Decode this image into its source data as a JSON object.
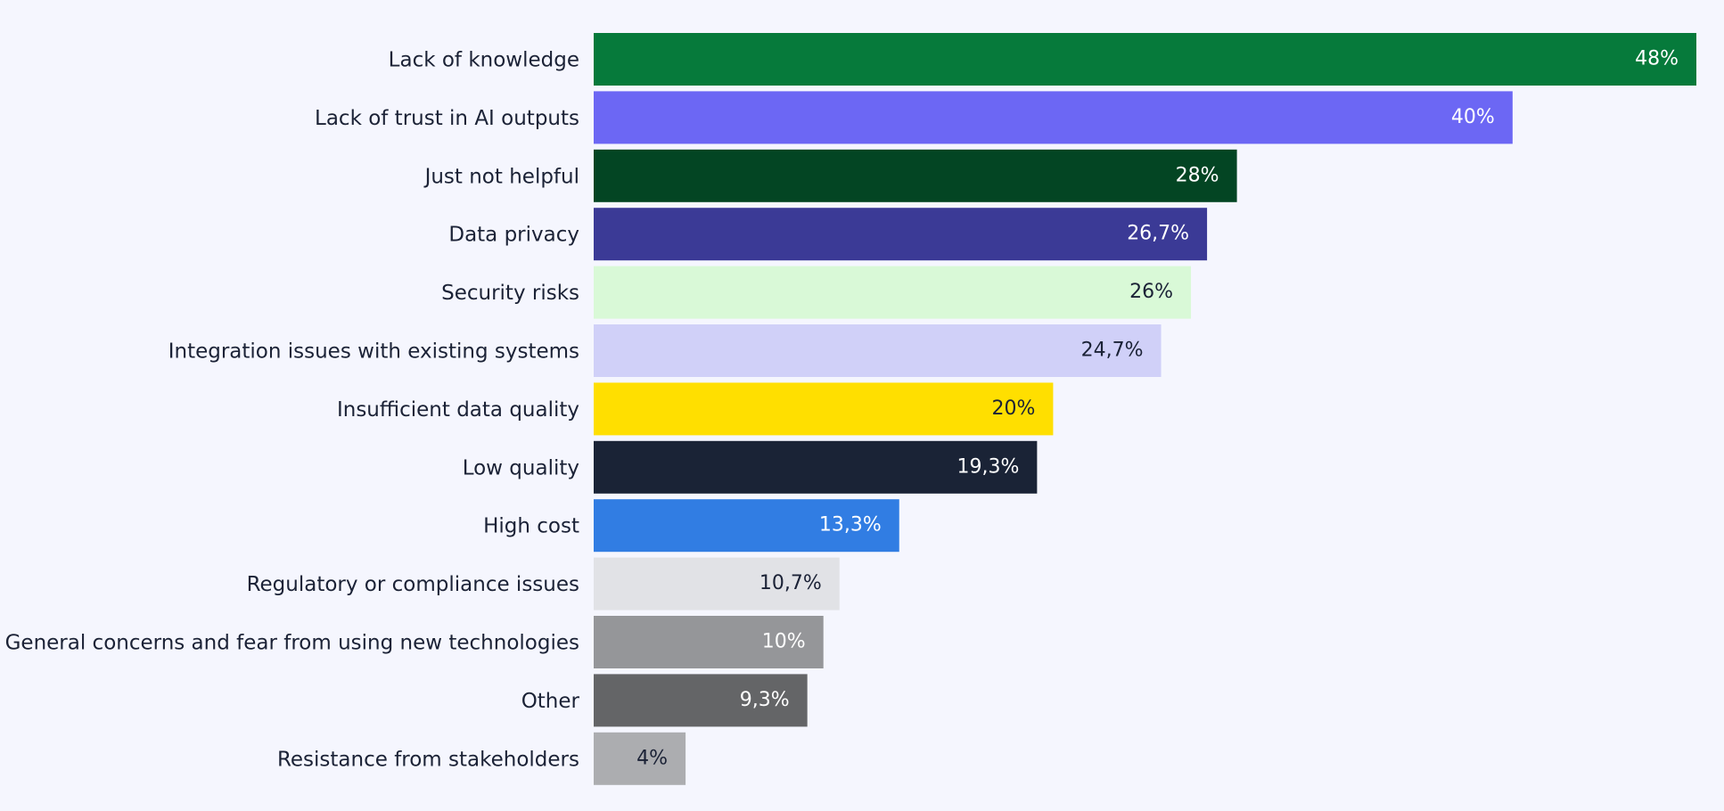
{
  "chart_data": {
    "type": "bar",
    "orientation": "horizontal",
    "title": "",
    "xlabel": "",
    "ylabel": "",
    "xlim": [
      0,
      48
    ],
    "grid": false,
    "legend": "none",
    "categories": [
      "Lack of knowledge",
      "Lack of trust in AI outputs",
      "Just not helpful",
      "Data privacy",
      "Security risks",
      "Integration issues with existing systems",
      "Insufficient data quality",
      "Low quality",
      "High cost",
      "Regulatory or compliance issues",
      "General concerns and fear from using new technologies",
      "Other",
      "Resistance from stakeholders"
    ],
    "values": [
      48,
      40,
      28,
      26.7,
      26,
      24.7,
      20,
      19.3,
      13.3,
      10.7,
      10,
      9.3,
      4
    ],
    "data_labels": [
      "48%",
      "40%",
      "28%",
      "26,7%",
      "26%",
      "24,7%",
      "20%",
      "19,3%",
      "13,3%",
      "10,7%",
      "10%",
      "9,3%",
      "4%"
    ],
    "colors": [
      "#067a3b",
      "#6c67f4",
      "#034523",
      "#3b3a96",
      "#d9f9d7",
      "#d0d0f8",
      "#ffdf00",
      "#1a2336",
      "#317de3",
      "#e1e2e6",
      "#959699",
      "#646567",
      "#acadb0"
    ],
    "label_colors": [
      "#ffffff",
      "#ffffff",
      "#ffffff",
      "#ffffff",
      "#1b2236",
      "#1b2236",
      "#1b2236",
      "#ffffff",
      "#ffffff",
      "#1b2236",
      "#ffffff",
      "#ffffff",
      "#1b2236"
    ]
  }
}
